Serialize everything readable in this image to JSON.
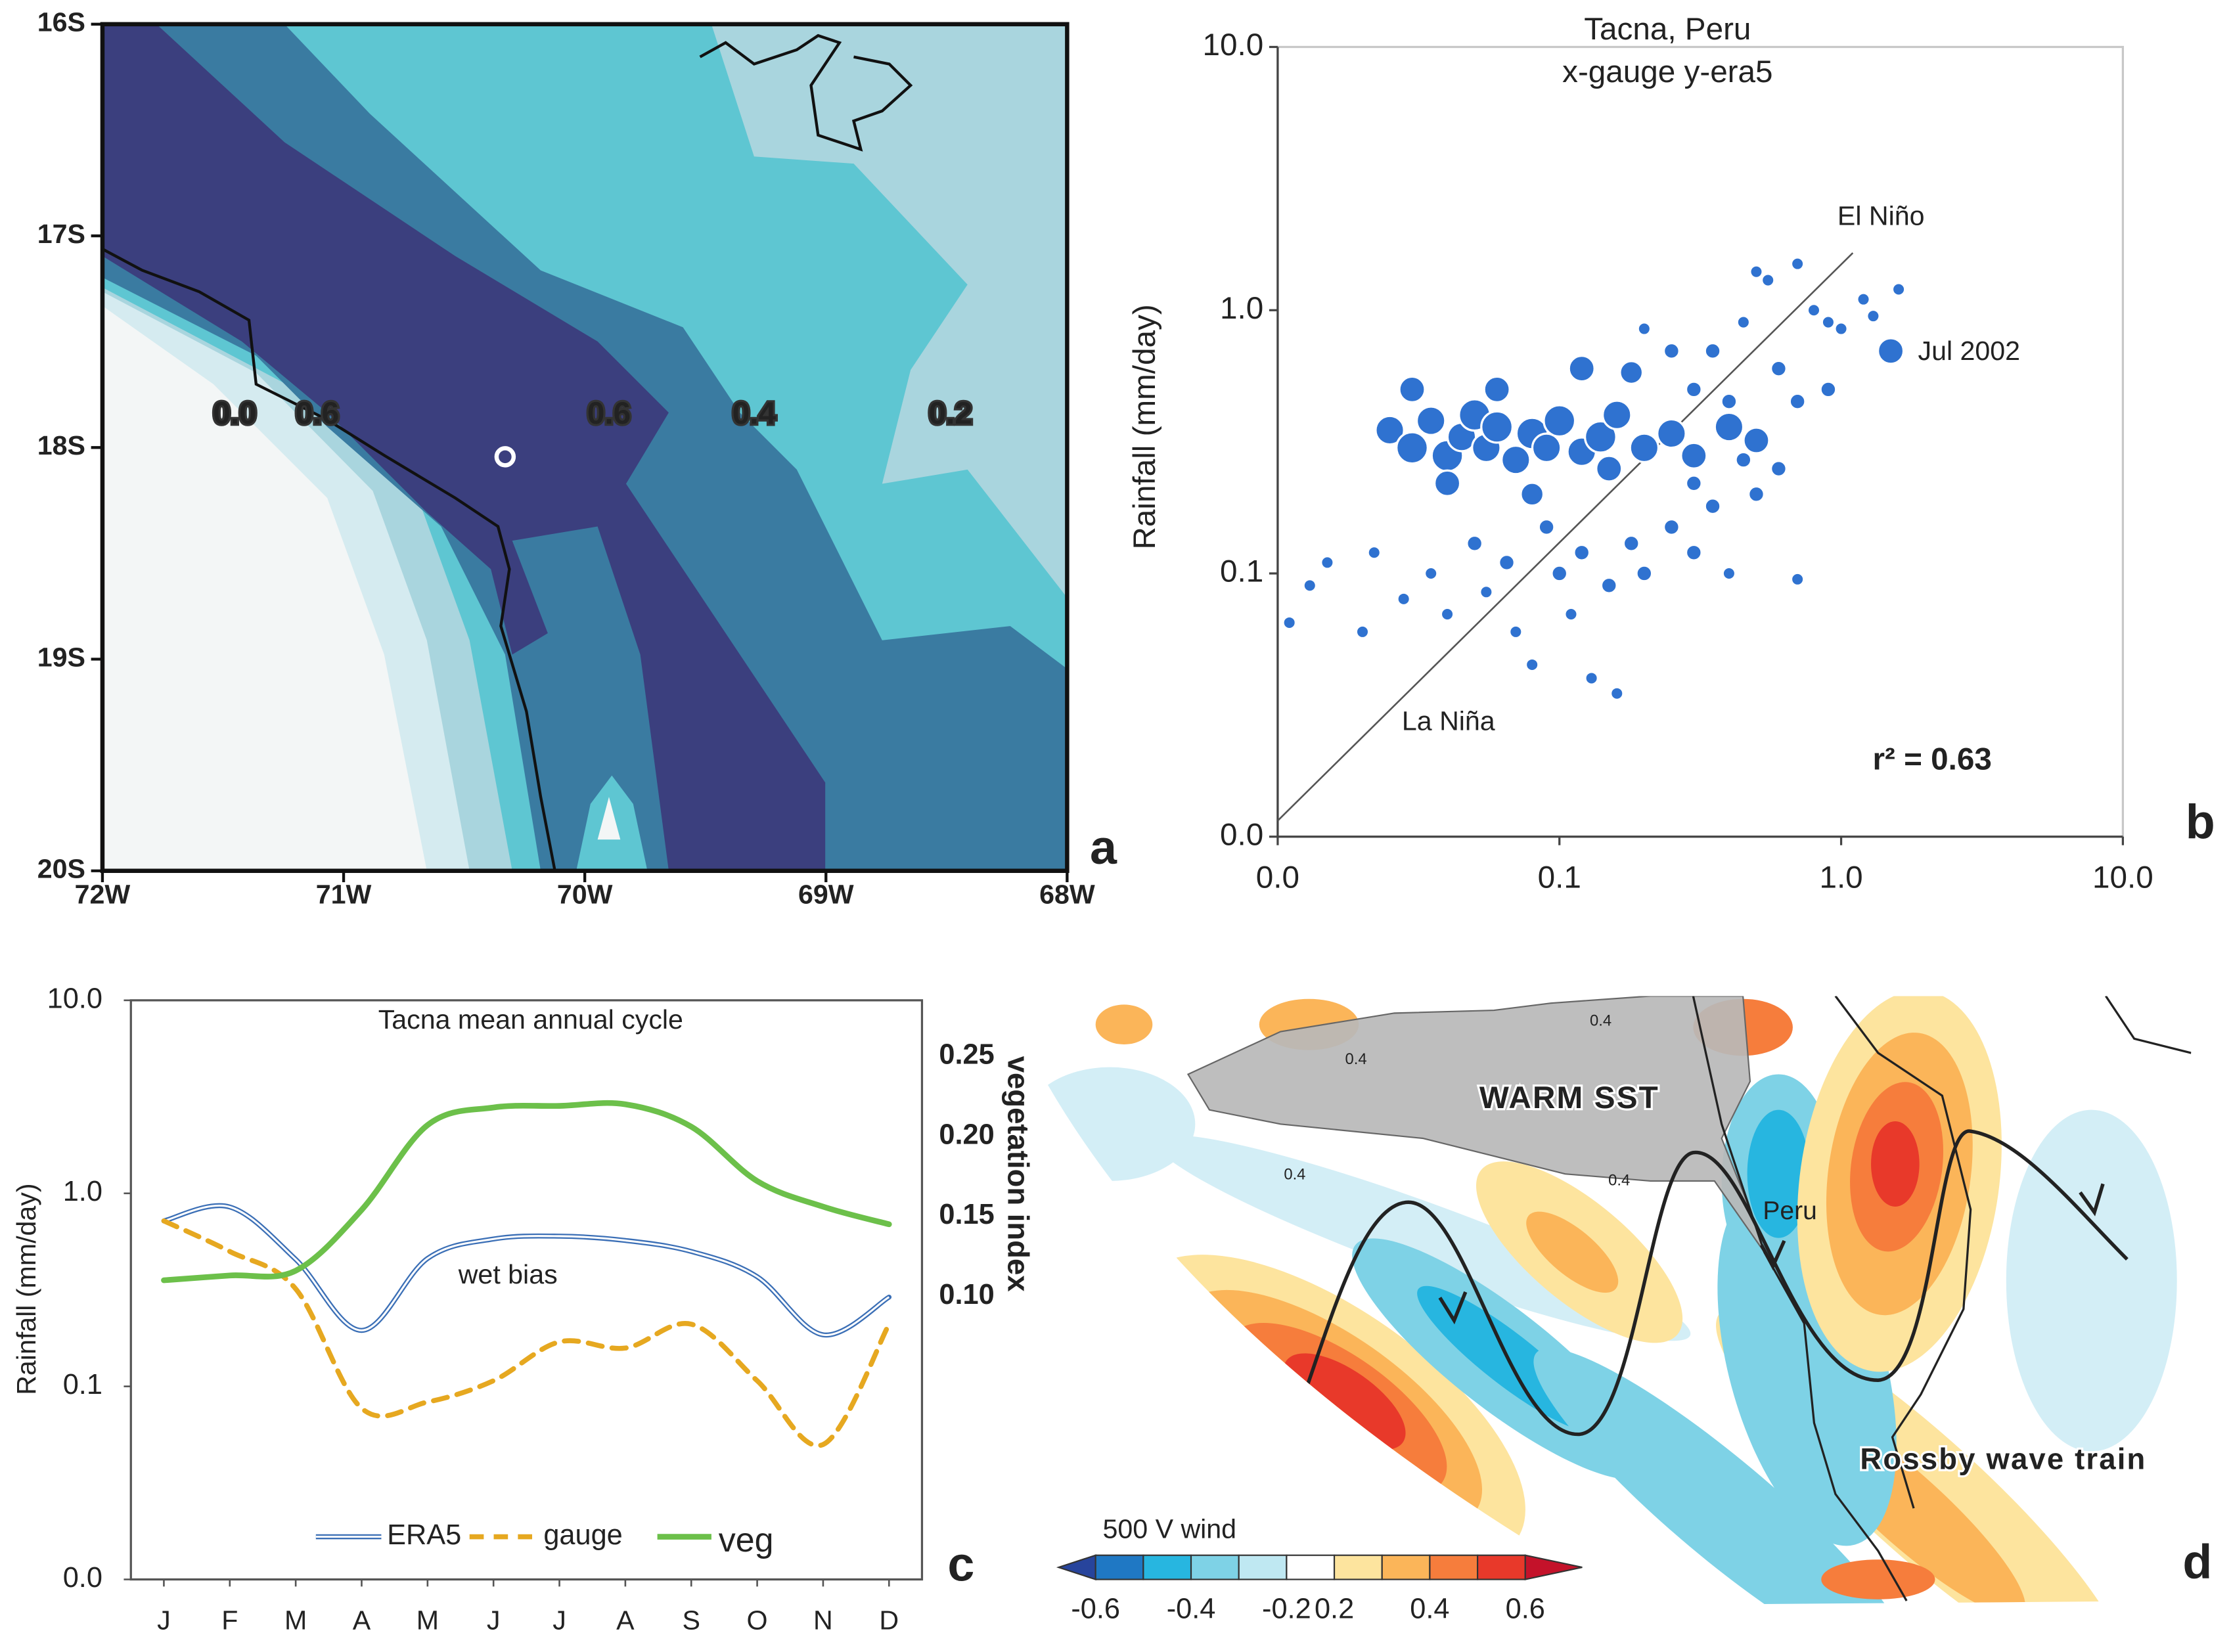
{
  "chart_data": [
    {
      "type": "map",
      "label": "a",
      "xlim": [
        -72,
        -68
      ],
      "ylim": [
        -20,
        -16
      ],
      "xticks": [
        {
          "value": -72,
          "label": "72W"
        },
        {
          "value": -71,
          "label": "71W"
        },
        {
          "value": -70,
          "label": "70W"
        },
        {
          "value": -69,
          "label": "69W"
        },
        {
          "value": -68,
          "label": "68W"
        }
      ],
      "yticks": [
        {
          "value": -16,
          "label": "16S"
        },
        {
          "value": -17,
          "label": "17S"
        },
        {
          "value": -18,
          "label": "18S"
        },
        {
          "value": -19,
          "label": "19S"
        },
        {
          "value": -20,
          "label": "20S"
        }
      ],
      "annotations": [
        "0.0",
        "0.6",
        "0.6",
        "0.4",
        "0.2"
      ]
    },
    {
      "type": "scatter",
      "label": "b",
      "title": "Tacna, Peru",
      "subtitle": "x-gauge y-era5",
      "y_label": "Rainfall (mm/day)",
      "log_x": true,
      "log_y": true,
      "xlim": [
        0.01,
        10
      ],
      "ylim": [
        0.01,
        10
      ],
      "xticks": [
        {
          "value": 0.01,
          "label": "0.0"
        },
        0.1,
        {
          "value": 1,
          "label": "1.0"
        },
        {
          "value": 10,
          "label": "10.0"
        }
      ],
      "yticks": [
        {
          "value": 0.01,
          "label": "0.0"
        },
        0.1,
        {
          "value": 1,
          "label": "1.0"
        },
        {
          "value": 10,
          "label": "10.0"
        }
      ],
      "color": "#2f72d0",
      "x": [
        0.011,
        0.013,
        0.015,
        0.02,
        0.022,
        0.028,
        0.035,
        0.04,
        0.05,
        0.055,
        0.065,
        0.07,
        0.08,
        0.09,
        0.1,
        0.11,
        0.12,
        0.13,
        0.15,
        0.16,
        0.18,
        0.2,
        0.25,
        0.3,
        0.35,
        0.4,
        0.5,
        0.6,
        0.7,
        0.3,
        0.35,
        0.45,
        0.5,
        0.55,
        0.7,
        0.8,
        0.9,
        1.0,
        1.2,
        1.3,
        1.6,
        0.2,
        0.25,
        0.6,
        0.7,
        0.9,
        0.4,
        0.3,
        0.45,
        0.025,
        0.03,
        0.035,
        0.04,
        0.045,
        0.05,
        0.055,
        0.06,
        0.07,
        0.08,
        0.09,
        0.1,
        0.12,
        0.14,
        0.16,
        0.2,
        0.25,
        0.3,
        0.4,
        0.5,
        0.03,
        0.06,
        0.12,
        0.18,
        0.04,
        0.08,
        0.15,
        1.5
      ],
      "values": [
        0.065,
        0.09,
        0.11,
        0.06,
        0.12,
        0.08,
        0.1,
        0.07,
        0.13,
        0.085,
        0.11,
        0.06,
        0.045,
        0.15,
        0.1,
        0.07,
        0.12,
        0.04,
        0.09,
        0.035,
        0.13,
        0.1,
        0.15,
        0.12,
        0.18,
        0.1,
        0.2,
        0.25,
        0.095,
        0.5,
        0.7,
        0.9,
        1.4,
        1.3,
        1.5,
        1.0,
        0.9,
        0.85,
        1.1,
        0.95,
        1.2,
        0.85,
        0.7,
        0.6,
        0.45,
        0.5,
        0.45,
        0.22,
        0.27,
        0.35,
        0.3,
        0.38,
        0.28,
        0.33,
        0.4,
        0.3,
        0.36,
        0.27,
        0.34,
        0.3,
        0.38,
        0.29,
        0.33,
        0.4,
        0.3,
        0.34,
        0.28,
        0.36,
        0.32,
        0.5,
        0.5,
        0.6,
        0.58,
        0.22,
        0.2,
        0.25,
        0.7
      ],
      "sizes": [
        4,
        4,
        4,
        4,
        4,
        4,
        4,
        4,
        5,
        4,
        5,
        4,
        4,
        5,
        5,
        4,
        5,
        4,
        5,
        4,
        5,
        5,
        5,
        5,
        5,
        4,
        5,
        5,
        4,
        5,
        5,
        4,
        4,
        4,
        4,
        4,
        4,
        4,
        4,
        4,
        4,
        4,
        5,
        5,
        5,
        5,
        5,
        5,
        5,
        10,
        11,
        10,
        11,
        10,
        11,
        10,
        11,
        10,
        11,
        10,
        11,
        10,
        11,
        10,
        10,
        10,
        9,
        10,
        9,
        9,
        9,
        9,
        8,
        9,
        8,
        9,
        9
      ],
      "fit_line": {
        "x": [
          0.01,
          1.1
        ],
        "values": [
          0.0115,
          1.65
        ]
      },
      "annotations": [
        "El Niño",
        "Jul 2002",
        "La Niña",
        "r² = 0.63"
      ]
    },
    {
      "type": "line",
      "label": "c",
      "title": "Tacna mean annual cycle",
      "y_label": "Rainfall (mm/day)",
      "y2_label": "vegetation index",
      "log_y": true,
      "ylim": [
        0.01,
        10
      ],
      "yticks": [
        {
          "value": 0.01,
          "label": "0.0"
        },
        0.1,
        {
          "value": 1,
          "label": "1.0"
        },
        {
          "value": 10,
          "label": "10.0"
        }
      ],
      "y2lim": [
        -0.077,
        0.285
      ],
      "y2ticks": [
        {
          "value": 0.1,
          "label": "0.10"
        },
        0.15,
        {
          "value": 0.2,
          "label": "0.20"
        },
        0.25
      ],
      "y2_color": "#5cb531",
      "categories": [
        "J",
        "F",
        "M",
        "A",
        "M",
        "J",
        "J",
        "A",
        "S",
        "O",
        "N",
        "D"
      ],
      "series": [
        {
          "name": "ERA5",
          "color": "#3b6fb6",
          "style": "double",
          "values": [
            0.72,
            0.85,
            0.455,
            0.195,
            0.46,
            0.58,
            0.6,
            0.57,
            0.5,
            0.37,
            0.185,
            0.29
          ]
        },
        {
          "name": "gauge",
          "color": "#e6a820",
          "style": "dashed",
          "values": [
            0.72,
            0.5,
            0.32,
            0.077,
            0.083,
            0.107,
            0.17,
            0.158,
            0.21,
            0.107,
            0.05,
            0.21
          ]
        },
        {
          "name": "veg",
          "color": "#6cc04a",
          "style": "solid",
          "axis": "y2",
          "values": [
            0.11,
            0.113,
            0.116,
            0.154,
            0.207,
            0.218,
            0.219,
            0.22,
            0.206,
            0.172,
            0.156,
            0.145
          ]
        }
      ],
      "legend": "bottom",
      "annotations": [
        "wet bias"
      ]
    },
    {
      "type": "map",
      "label": "d",
      "annotations": [
        "WARM SST",
        "Peru",
        "Rossby wave train",
        "0.4",
        "0.4",
        "0.4",
        "0.4"
      ],
      "colorbar": {
        "title": "500 V wind",
        "levels": [
          -0.6,
          -0.5,
          -0.4,
          -0.3,
          -0.2,
          0.2,
          0.3,
          0.4,
          0.5,
          0.6
        ],
        "colors": [
          "#27449c",
          "#1f78c4",
          "#27b6e0",
          "#7ed2e6",
          "#bfe8f2",
          "#ffffff",
          "#fde49e",
          "#fbb559",
          "#f67d3c",
          "#e8392a",
          "#c4122a"
        ],
        "ticks": [
          -0.6,
          -0.4,
          -0.2,
          0.2,
          0.4,
          0.6
        ]
      }
    }
  ]
}
